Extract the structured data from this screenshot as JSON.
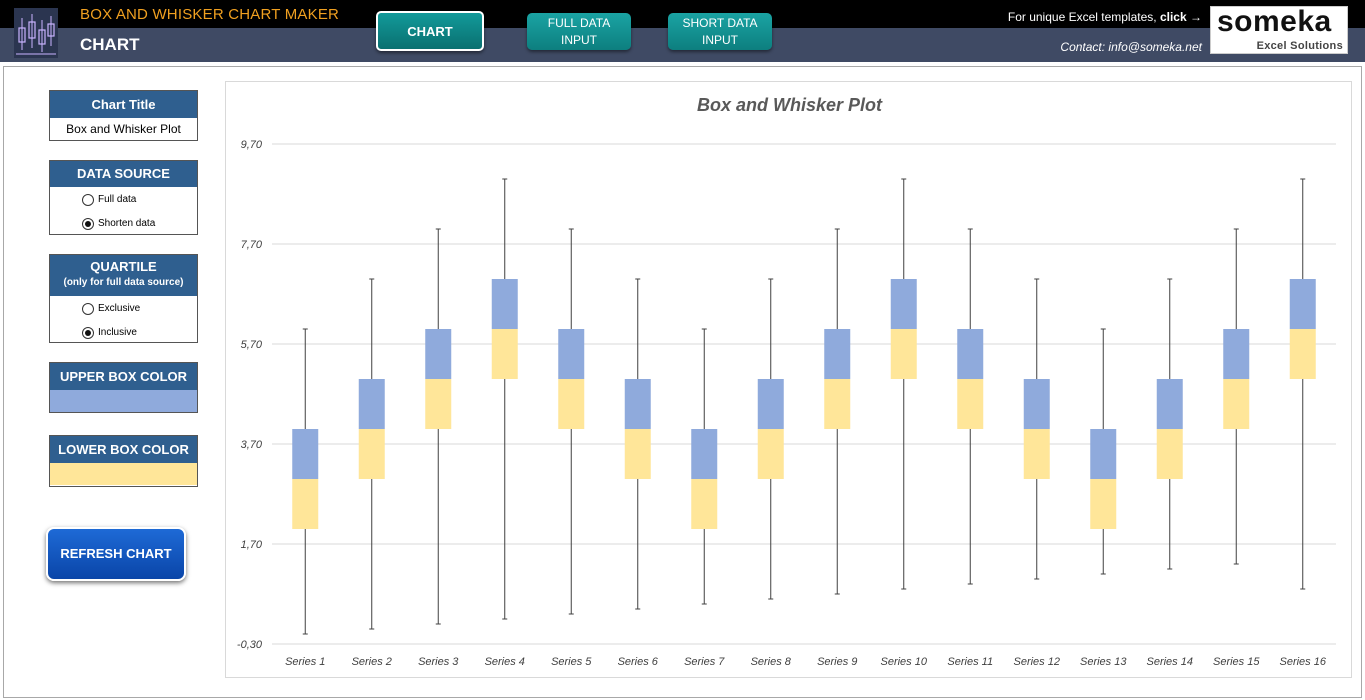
{
  "header": {
    "app_title": "BOX AND WHISKER CHART MAKER",
    "page_title": "CHART",
    "nav": {
      "chart": "CHART",
      "full_line1": "FULL DATA",
      "full_line2": "INPUT",
      "short_line1": "SHORT DATA",
      "short_line2": "INPUT"
    },
    "promo_text": "For unique Excel templates,",
    "promo_link": "click →",
    "contact": "Contact: info@someka.net",
    "brand_name": "someka",
    "brand_sub": "Excel Solutions"
  },
  "panel": {
    "title_label": "Chart Title",
    "title_value": "Box and Whisker Plot",
    "source_label": "DATA SOURCE",
    "source_options": [
      "Full data",
      "Shorten data"
    ],
    "source_selected": 1,
    "quartile_label": "QUARTILE",
    "quartile_sub": "(only for full data source)",
    "quartile_options": [
      "Exclusive",
      "Inclusive"
    ],
    "quartile_selected": 1,
    "upper_label": "UPPER BOX COLOR",
    "lower_label": "LOWER BOX COLOR",
    "refresh_label": "REFRESH CHART"
  },
  "colors": {
    "upper_box": "#8faadc",
    "lower_box": "#ffe699",
    "whisker": "#404040",
    "grid": "#d9d9d9"
  },
  "chart_data": {
    "type": "box",
    "title": "Box and Whisker Plot",
    "ylim": [
      -0.3,
      9.7
    ],
    "yticks": [
      "9,70",
      "7,70",
      "5,70",
      "3,70",
      "1,70",
      "-0,30"
    ],
    "ytick_values": [
      9.7,
      7.7,
      5.7,
      3.7,
      1.7,
      -0.3
    ],
    "grid": true,
    "categories": [
      "Series 1",
      "Series 2",
      "Series 3",
      "Series 4",
      "Series 5",
      "Series 6",
      "Series 7",
      "Series 8",
      "Series 9",
      "Series 10",
      "Series 11",
      "Series 12",
      "Series 13",
      "Series 14",
      "Series 15",
      "Series 16"
    ],
    "min": [
      -0.1,
      0.0,
      0.1,
      0.2,
      0.3,
      0.4,
      0.5,
      0.6,
      0.7,
      0.8,
      0.9,
      1.0,
      1.1,
      1.2,
      1.3,
      0.8
    ],
    "q1": [
      2.0,
      3.0,
      4.0,
      5.0,
      4.0,
      3.0,
      2.0,
      3.0,
      4.0,
      5.0,
      4.0,
      3.0,
      2.0,
      3.0,
      4.0,
      5.0
    ],
    "median": [
      3.0,
      4.0,
      5.0,
      6.0,
      5.0,
      4.0,
      3.0,
      4.0,
      5.0,
      6.0,
      5.0,
      4.0,
      3.0,
      4.0,
      5.0,
      6.0
    ],
    "q3": [
      4.0,
      5.0,
      6.0,
      7.0,
      6.0,
      5.0,
      4.0,
      5.0,
      6.0,
      7.0,
      6.0,
      5.0,
      4.0,
      5.0,
      6.0,
      7.0
    ],
    "max": [
      6.0,
      7.0,
      8.0,
      9.0,
      8.0,
      7.0,
      6.0,
      7.0,
      8.0,
      9.0,
      8.0,
      7.0,
      6.0,
      7.0,
      8.0,
      9.0
    ]
  }
}
